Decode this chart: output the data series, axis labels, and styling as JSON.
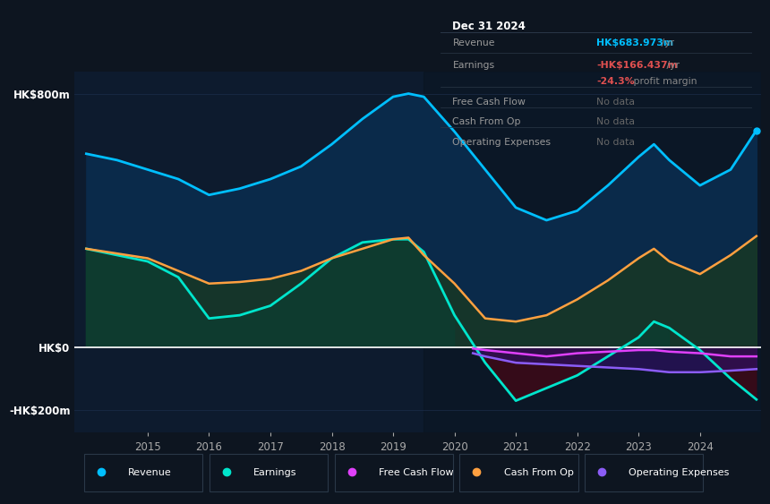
{
  "bg_color": "#0d1520",
  "plot_bg_color": "#0d1b2e",
  "grid_color": "#1e3050",
  "years": [
    2014,
    2014.5,
    2015,
    2015.5,
    2016,
    2016.5,
    2017,
    2017.5,
    2018,
    2018.5,
    2019,
    2019.25,
    2019.5,
    2020,
    2020.5,
    2021,
    2021.5,
    2022,
    2022.5,
    2023,
    2023.25,
    2023.5,
    2024,
    2024.5,
    2024.92
  ],
  "revenue": [
    610,
    590,
    560,
    530,
    480,
    500,
    530,
    570,
    640,
    720,
    790,
    800,
    790,
    680,
    560,
    440,
    400,
    430,
    510,
    600,
    640,
    590,
    510,
    560,
    684
  ],
  "earnings": [
    310,
    290,
    270,
    220,
    90,
    100,
    130,
    200,
    280,
    330,
    340,
    340,
    300,
    100,
    -50,
    -170,
    -130,
    -90,
    -30,
    30,
    80,
    60,
    -10,
    -100,
    -166
  ],
  "cash_from_op": [
    310,
    295,
    280,
    240,
    200,
    205,
    215,
    240,
    280,
    310,
    340,
    345,
    290,
    200,
    90,
    80,
    100,
    150,
    210,
    280,
    310,
    270,
    230,
    290,
    350
  ],
  "free_cash_flow_years": [
    2020.3,
    2020.5,
    2021,
    2021.5,
    2022,
    2022.5,
    2023,
    2023.25,
    2023.5,
    2024,
    2024.5,
    2024.92
  ],
  "free_cash_flow": [
    -5,
    -10,
    -20,
    -30,
    -20,
    -15,
    -10,
    -10,
    -15,
    -20,
    -30,
    -30
  ],
  "op_exp_years": [
    2020.3,
    2020.5,
    2021,
    2021.5,
    2022,
    2022.5,
    2023,
    2023.25,
    2023.5,
    2024,
    2024.5,
    2024.92
  ],
  "operating_expenses": [
    -20,
    -30,
    -50,
    -55,
    -60,
    -65,
    -70,
    -75,
    -80,
    -80,
    -75,
    -70
  ],
  "revenue_color": "#00bfff",
  "earnings_color": "#00e5cc",
  "free_cash_flow_color": "#e040fb",
  "cash_from_op_color": "#ffa040",
  "operating_expenses_color": "#8b5cf6",
  "revenue_fill": "#0a2a4a",
  "earnings_fill_pos": "#0d3d30",
  "earnings_fill_neg": "#3a0a18",
  "cash_from_op_fill": "#2a1a00",
  "op_exp_fill": "#2d1060",
  "shaded_start": 2019.5,
  "shaded_end": 2025.0,
  "xlim": [
    2013.8,
    2025.0
  ],
  "ylim": [
    -270,
    870
  ],
  "ytick_vals": [
    800,
    0,
    -200
  ],
  "ytick_labels": [
    "HK$800m",
    "HK$0",
    "-HK$200m"
  ],
  "xtick_positions": [
    2015,
    2016,
    2017,
    2018,
    2019,
    2020,
    2021,
    2022,
    2023,
    2024
  ],
  "xtick_labels": [
    "2015",
    "2016",
    "2017",
    "2018",
    "2019",
    "2020",
    "2021",
    "2022",
    "2023",
    "2024"
  ],
  "info_box": {
    "title": "Dec 31 2024",
    "rows": [
      {
        "label": "Revenue",
        "value": "HK$683.973m",
        "unit": " /yr",
        "value_color": "#00bfff",
        "unit_color": "#888888"
      },
      {
        "label": "Earnings",
        "value": "-HK$166.437m",
        "unit": " /yr",
        "value_color": "#e05050",
        "unit_color": "#888888"
      },
      {
        "label": "",
        "value": "-24.3%",
        "unit": " profit margin",
        "value_color": "#e05050",
        "unit_color": "#888888"
      },
      {
        "label": "Free Cash Flow",
        "value": "No data",
        "unit": "",
        "value_color": "#666666",
        "unit_color": "#666666"
      },
      {
        "label": "Cash From Op",
        "value": "No data",
        "unit": "",
        "value_color": "#666666",
        "unit_color": "#666666"
      },
      {
        "label": "Operating Expenses",
        "value": "No data",
        "unit": "",
        "value_color": "#666666",
        "unit_color": "#666666"
      }
    ]
  },
  "legend_items": [
    {
      "label": "Revenue",
      "color": "#00bfff"
    },
    {
      "label": "Earnings",
      "color": "#00e5cc"
    },
    {
      "label": "Free Cash Flow",
      "color": "#e040fb"
    },
    {
      "label": "Cash From Op",
      "color": "#ffa040"
    },
    {
      "label": "Operating Expenses",
      "color": "#8b5cf6"
    }
  ]
}
